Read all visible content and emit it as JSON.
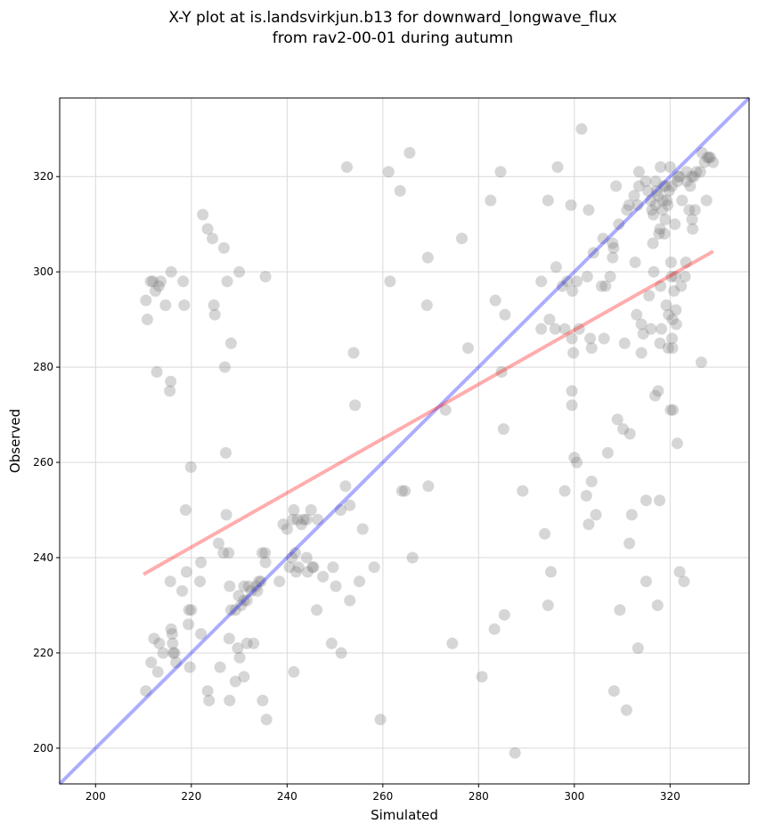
{
  "chart_data": {
    "type": "scatter",
    "title": "X-Y plot at is.landsvirkjun.b13 for downward_longwave_flux",
    "subtitle": "from rav2-00-01 during autumn",
    "xlabel": "Simulated",
    "ylabel": "Observed",
    "xlim": [
      192.5,
      336.5
    ],
    "ylim": [
      192.5,
      336.5
    ],
    "xticks": [
      200,
      220,
      240,
      260,
      280,
      300,
      320
    ],
    "yticks": [
      200,
      220,
      240,
      260,
      280,
      300,
      320
    ],
    "grid": true,
    "colors": {
      "points": "#808080",
      "identity_line": "#0000ff",
      "fit_line": "#ff0000"
    },
    "lines": [
      {
        "kind": "identity",
        "x": [
          192.5,
          336.5
        ],
        "y": [
          192.5,
          336.5
        ]
      },
      {
        "kind": "regression",
        "x": [
          210,
          329
        ],
        "y": [
          236.5,
          304.3
        ]
      }
    ],
    "points": [
      [
        210.5,
        294
      ],
      [
        210.8,
        290
      ],
      [
        211.5,
        298
      ],
      [
        212,
        298
      ],
      [
        212.5,
        296
      ],
      [
        212.8,
        279
      ],
      [
        213.2,
        297
      ],
      [
        213.6,
        298
      ],
      [
        214.6,
        293
      ],
      [
        215.5,
        275
      ],
      [
        215.7,
        277
      ],
      [
        215.8,
        300
      ],
      [
        218.3,
        298
      ],
      [
        218.5,
        293
      ],
      [
        222.4,
        312
      ],
      [
        223.4,
        309
      ],
      [
        224.4,
        307
      ],
      [
        224.7,
        293
      ],
      [
        224.9,
        291
      ],
      [
        226.8,
        305
      ],
      [
        227.5,
        298
      ],
      [
        228.3,
        285
      ],
      [
        230,
        300
      ],
      [
        235.5,
        299
      ],
      [
        227,
        280
      ],
      [
        227.2,
        262
      ],
      [
        219.9,
        259
      ],
      [
        218.8,
        250
      ],
      [
        227.3,
        249
      ],
      [
        225.7,
        243
      ],
      [
        226.7,
        241
      ],
      [
        227.8,
        241
      ],
      [
        219,
        237
      ],
      [
        222,
        239
      ],
      [
        215.6,
        235
      ],
      [
        221.8,
        235
      ],
      [
        218.1,
        233
      ],
      [
        228,
        234
      ],
      [
        229.9,
        232
      ],
      [
        231,
        234
      ],
      [
        232,
        234
      ],
      [
        232.5,
        233
      ],
      [
        233.5,
        234
      ],
      [
        234.5,
        235
      ],
      [
        234.8,
        241
      ],
      [
        235.4,
        241
      ],
      [
        235.5,
        239
      ],
      [
        230.4,
        230
      ],
      [
        231,
        231
      ],
      [
        231.6,
        231
      ],
      [
        228.3,
        229
      ],
      [
        229.2,
        229
      ],
      [
        219.5,
        229
      ],
      [
        220,
        229
      ],
      [
        212.2,
        223
      ],
      [
        213.3,
        222
      ],
      [
        214.1,
        220
      ],
      [
        215.8,
        225
      ],
      [
        216,
        224
      ],
      [
        216.1,
        222
      ],
      [
        216.2,
        220
      ],
      [
        216.5,
        220
      ],
      [
        216.8,
        218
      ],
      [
        219.4,
        226
      ],
      [
        222,
        224
      ],
      [
        213,
        216
      ],
      [
        211.6,
        218
      ],
      [
        210.5,
        212
      ],
      [
        219.7,
        217
      ],
      [
        226,
        217
      ],
      [
        227.9,
        223
      ],
      [
        229.7,
        221
      ],
      [
        230.1,
        219
      ],
      [
        231.6,
        222
      ],
      [
        233,
        222
      ],
      [
        229.2,
        214
      ],
      [
        231,
        215
      ],
      [
        223.4,
        212
      ],
      [
        223.7,
        210
      ],
      [
        228,
        210
      ],
      [
        234.9,
        210
      ],
      [
        235.7,
        206
      ],
      [
        233.8,
        233
      ],
      [
        234.1,
        235
      ],
      [
        238.4,
        235
      ],
      [
        239.2,
        247
      ],
      [
        240,
        246
      ],
      [
        240.5,
        238
      ],
      [
        241,
        240
      ],
      [
        241.2,
        248
      ],
      [
        241.4,
        250
      ],
      [
        241.7,
        241
      ],
      [
        241.9,
        237
      ],
      [
        242.2,
        248
      ],
      [
        242.4,
        238
      ],
      [
        243,
        247
      ],
      [
        243.5,
        248
      ],
      [
        244.1,
        248
      ],
      [
        244.1,
        240
      ],
      [
        244.3,
        237
      ],
      [
        245,
        250
      ],
      [
        245.3,
        238
      ],
      [
        245.5,
        238
      ],
      [
        246.2,
        229
      ],
      [
        246.4,
        248
      ],
      [
        247.5,
        236
      ],
      [
        249.3,
        222
      ],
      [
        249.6,
        238
      ],
      [
        250.2,
        234
      ],
      [
        251.2,
        250
      ],
      [
        251.3,
        220
      ],
      [
        252.2,
        255
      ],
      [
        252.5,
        322
      ],
      [
        253.1,
        251
      ],
      [
        253.1,
        231
      ],
      [
        253.9,
        283
      ],
      [
        254.2,
        272
      ],
      [
        255.1,
        235
      ],
      [
        255.8,
        246
      ],
      [
        258.2,
        238
      ],
      [
        259.5,
        206
      ],
      [
        241.4,
        216
      ],
      [
        261.2,
        321
      ],
      [
        261.5,
        298
      ],
      [
        263.6,
        317
      ],
      [
        264,
        254
      ],
      [
        264.6,
        254
      ],
      [
        265.6,
        325
      ],
      [
        266.2,
        240
      ],
      [
        269.2,
        293
      ],
      [
        269.4,
        303
      ],
      [
        269.5,
        255
      ],
      [
        273.1,
        271
      ],
      [
        274.5,
        222
      ],
      [
        276.5,
        307
      ],
      [
        277.8,
        284
      ],
      [
        280.7,
        215
      ],
      [
        282.5,
        315
      ],
      [
        283.3,
        225
      ],
      [
        283.5,
        294
      ],
      [
        284.6,
        321
      ],
      [
        284.8,
        279
      ],
      [
        285.2,
        267
      ],
      [
        285.4,
        228
      ],
      [
        285.5,
        291
      ],
      [
        287.6,
        199
      ],
      [
        289.2,
        254
      ],
      [
        293.1,
        298
      ],
      [
        293.1,
        288
      ],
      [
        293.8,
        245
      ],
      [
        294.5,
        230
      ],
      [
        294.5,
        315
      ],
      [
        294.8,
        290
      ],
      [
        295.1,
        237
      ],
      [
        296,
        288
      ],
      [
        296.2,
        301
      ],
      [
        296.5,
        322
      ],
      [
        297.5,
        297
      ],
      [
        298,
        254
      ],
      [
        298,
        288
      ],
      [
        298.5,
        298
      ],
      [
        299.3,
        314
      ],
      [
        299.5,
        286
      ],
      [
        299.5,
        275
      ],
      [
        299.5,
        272
      ],
      [
        299.6,
        296
      ],
      [
        299.8,
        283
      ],
      [
        300,
        261
      ],
      [
        300.5,
        260
      ],
      [
        300.5,
        298
      ],
      [
        301,
        288
      ],
      [
        301.5,
        330
      ],
      [
        302.5,
        253
      ],
      [
        302.7,
        299
      ],
      [
        303,
        313
      ],
      [
        303,
        247
      ],
      [
        303.3,
        286
      ],
      [
        303.6,
        256
      ],
      [
        303.6,
        284
      ],
      [
        304,
        304
      ],
      [
        304.5,
        249
      ],
      [
        305.7,
        297
      ],
      [
        306,
        307
      ],
      [
        306.2,
        286
      ],
      [
        306.5,
        297
      ],
      [
        307,
        262
      ],
      [
        307.5,
        299
      ],
      [
        308,
        303
      ],
      [
        308,
        306
      ],
      [
        308.2,
        305
      ],
      [
        308.3,
        212
      ],
      [
        308.7,
        318
      ],
      [
        309,
        269
      ],
      [
        309.3,
        310
      ],
      [
        309.5,
        229
      ],
      [
        310.2,
        267
      ],
      [
        310.5,
        285
      ],
      [
        310.9,
        208
      ],
      [
        311,
        313
      ],
      [
        311.4,
        314
      ],
      [
        311.5,
        243
      ],
      [
        311.6,
        266
      ],
      [
        312,
        249
      ],
      [
        312.5,
        316
      ],
      [
        312.7,
        302
      ],
      [
        313,
        291
      ],
      [
        313.2,
        314
      ],
      [
        313.3,
        221
      ],
      [
        313.5,
        321
      ],
      [
        313.5,
        318
      ],
      [
        314,
        289
      ],
      [
        314,
        283
      ],
      [
        314.4,
        287
      ],
      [
        314.9,
        319
      ],
      [
        315,
        252
      ],
      [
        315,
        235
      ],
      [
        315.4,
        317
      ],
      [
        315.6,
        295
      ],
      [
        316,
        288
      ],
      [
        316.2,
        313
      ],
      [
        316.5,
        312
      ],
      [
        316.6,
        300
      ],
      [
        316.9,
        274
      ],
      [
        317,
        314
      ],
      [
        317.2,
        317
      ],
      [
        317.4,
        230
      ],
      [
        317.5,
        275
      ],
      [
        317.5,
        316
      ],
      [
        317.7,
        308
      ],
      [
        317.8,
        252
      ],
      [
        317.9,
        285
      ],
      [
        318,
        322
      ],
      [
        318,
        297
      ],
      [
        318.2,
        288
      ],
      [
        318.4,
        313
      ],
      [
        318.7,
        318
      ],
      [
        319,
        311
      ],
      [
        319.1,
        318
      ],
      [
        319.2,
        293
      ],
      [
        319.5,
        314
      ],
      [
        319.6,
        284
      ],
      [
        319.7,
        291
      ],
      [
        319.8,
        317
      ],
      [
        320,
        322
      ],
      [
        320.1,
        271
      ],
      [
        320.2,
        302
      ],
      [
        320.3,
        299
      ],
      [
        320.4,
        286
      ],
      [
        320.5,
        290
      ],
      [
        320.5,
        284
      ],
      [
        320.6,
        271
      ],
      [
        320.8,
        296
      ],
      [
        321,
        310
      ],
      [
        321.1,
        299
      ],
      [
        321.2,
        292
      ],
      [
        321.3,
        289
      ],
      [
        321.5,
        319
      ],
      [
        321.5,
        264
      ],
      [
        321.6,
        320
      ],
      [
        322,
        320
      ],
      [
        322,
        237
      ],
      [
        322.3,
        297
      ],
      [
        322.5,
        315
      ],
      [
        322.9,
        235
      ],
      [
        323.1,
        299
      ],
      [
        323.3,
        302
      ],
      [
        323.4,
        321
      ],
      [
        323.5,
        319
      ],
      [
        324,
        313
      ],
      [
        324.2,
        318
      ],
      [
        324.5,
        320
      ],
      [
        324.6,
        311
      ],
      [
        324.7,
        309
      ],
      [
        325,
        320
      ],
      [
        325.2,
        313
      ],
      [
        325.5,
        321
      ],
      [
        326.3,
        321
      ],
      [
        326.5,
        281
      ],
      [
        326.7,
        325
      ],
      [
        327.2,
        323
      ],
      [
        327.6,
        315
      ],
      [
        327.8,
        324
      ],
      [
        328.1,
        324
      ],
      [
        328.4,
        324
      ],
      [
        329,
        323
      ],
      [
        316,
        315
      ],
      [
        317,
        319
      ],
      [
        318.5,
        315
      ],
      [
        319.3,
        315
      ],
      [
        317.9,
        309
      ],
      [
        316.4,
        306
      ],
      [
        320.4,
        318
      ],
      [
        318.8,
        308
      ]
    ]
  }
}
